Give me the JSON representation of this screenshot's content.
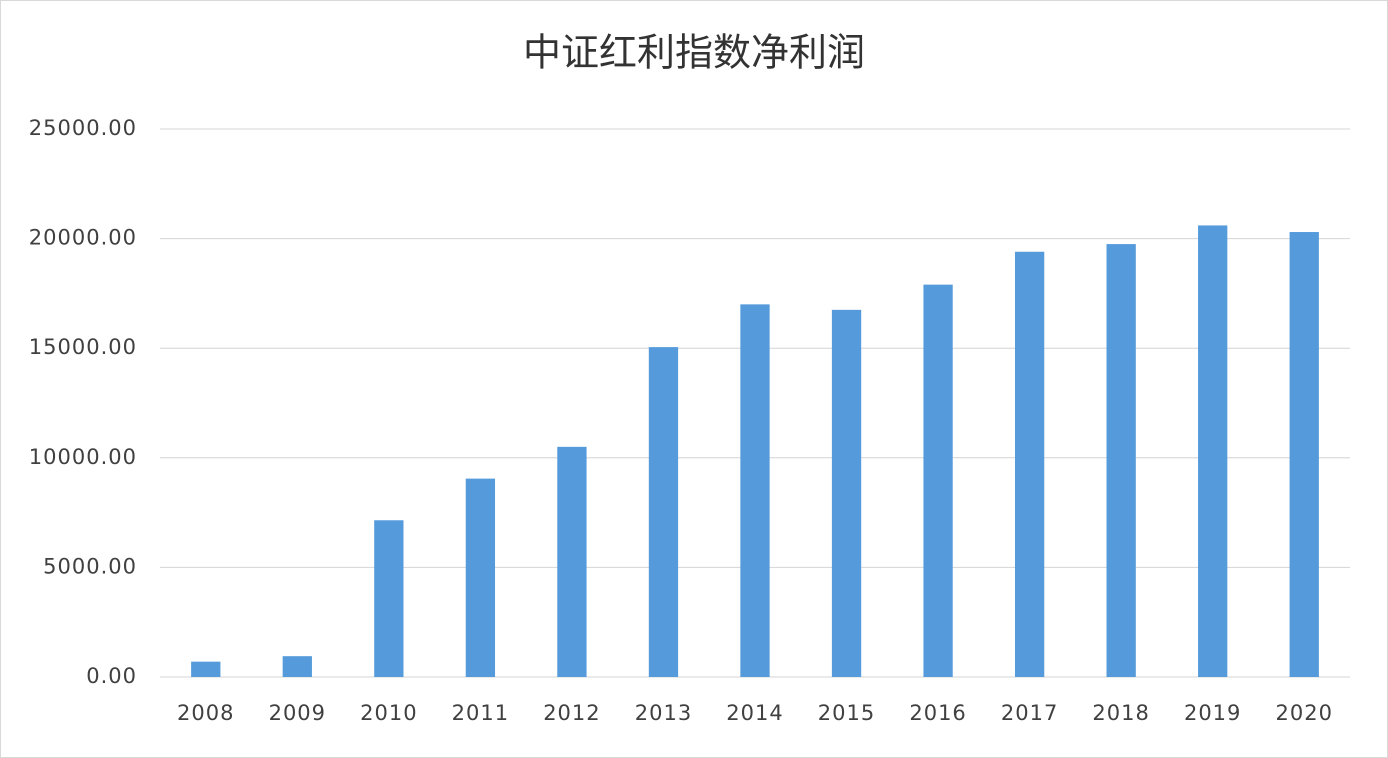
{
  "chart_data": {
    "type": "bar",
    "title": "中证红利指数净利润",
    "categories": [
      "2008",
      "2009",
      "2010",
      "2011",
      "2012",
      "2013",
      "2014",
      "2015",
      "2016",
      "2017",
      "2018",
      "2019",
      "2020"
    ],
    "values": [
      700,
      950,
      7150,
      9050,
      10500,
      15050,
      17000,
      16750,
      17900,
      19400,
      19750,
      20600,
      20300
    ],
    "color": "#559bdb",
    "ylim": [
      0,
      25000
    ],
    "yticks": [
      {
        "value": 0,
        "label": "0.00"
      },
      {
        "value": 5000,
        "label": "5000.00"
      },
      {
        "value": 10000,
        "label": "10000.00"
      },
      {
        "value": 15000,
        "label": "15000.00"
      },
      {
        "value": 20000,
        "label": "20000.00"
      },
      {
        "value": 25000,
        "label": "25000.00"
      }
    ],
    "grid": true
  }
}
